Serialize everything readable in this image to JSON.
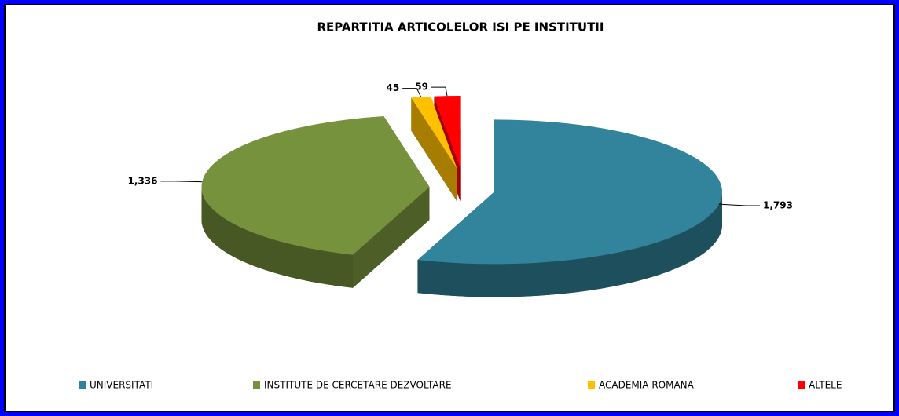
{
  "chart_data": {
    "type": "pie",
    "title": "REPARTITIA  ARTICOLELOR ISI PE INSTITUTII",
    "categories": [
      "UNIVERSITATI",
      "INSTITUTE DE CERCETARE DEZVOLTARE",
      "ACADEMIA ROMANA",
      "ALTELE"
    ],
    "values": [
      1793,
      1336,
      45,
      59
    ],
    "value_labels": [
      "1,793",
      "1,336",
      "45",
      "59"
    ],
    "colors": [
      "#31849b",
      "#76923c",
      "#ffc000",
      "#ff0000"
    ],
    "legend": "bottom"
  }
}
